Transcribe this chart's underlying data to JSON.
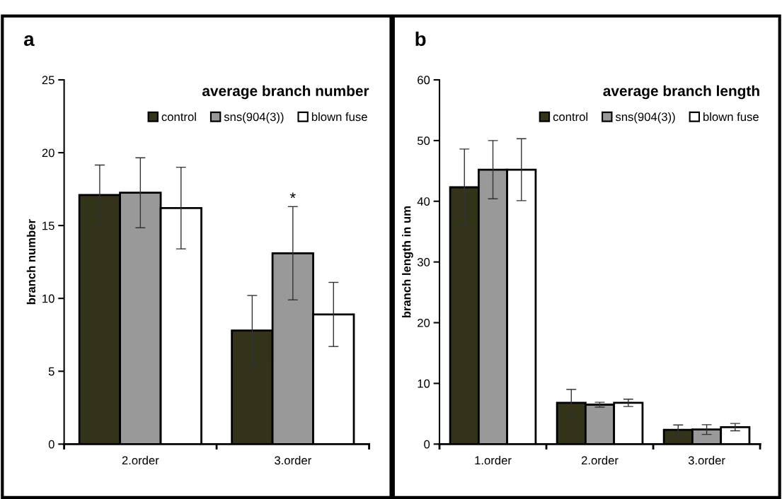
{
  "chart_data": [
    {
      "type": "bar",
      "title": "average branch number",
      "ylabel": "branch number",
      "categories": [
        "2.order",
        "3.order"
      ],
      "ylim": [
        0,
        25
      ],
      "yticks": [
        0,
        5,
        10,
        15,
        20,
        25
      ],
      "legend": "top right",
      "grid": false,
      "series": [
        {
          "name": "control",
          "color": "#333319",
          "values": [
            17.1,
            7.8
          ],
          "errors": [
            2.05,
            2.4
          ]
        },
        {
          "name": "sns(904(3))",
          "color": "#999999",
          "values": [
            17.25,
            13.1
          ],
          "errors": [
            2.4,
            3.2
          ]
        },
        {
          "name": "blown fuse",
          "color": "#ffffff",
          "values": [
            16.2,
            8.9
          ],
          "errors": [
            2.8,
            2.2
          ]
        }
      ],
      "annotations": [
        "a",
        {
          "text": "*",
          "x": "3.order",
          "y": 16.3
        }
      ]
    },
    {
      "type": "bar",
      "title": "average branch length",
      "ylabel": "branch length in um",
      "categories": [
        "1.order",
        "2.order",
        "3.order"
      ],
      "ylim": [
        0,
        60
      ],
      "yticks": [
        0,
        10,
        20,
        30,
        40,
        50,
        60
      ],
      "legend": "top right",
      "grid": false,
      "series": [
        {
          "name": "control",
          "color": "#333319",
          "values": [
            42.3,
            6.8,
            2.35
          ],
          "errors": [
            6.3,
            2.2,
            0.8
          ]
        },
        {
          "name": "sns(904(3))",
          "color": "#999999",
          "values": [
            45.2,
            6.5,
            2.4
          ],
          "errors": [
            4.8,
            0.4,
            0.8
          ]
        },
        {
          "name": "blown fuse",
          "color": "#ffffff",
          "values": [
            45.2,
            6.8,
            2.8
          ],
          "errors": [
            5.1,
            0.6,
            0.6
          ]
        }
      ],
      "annotations": [
        "b"
      ]
    }
  ]
}
